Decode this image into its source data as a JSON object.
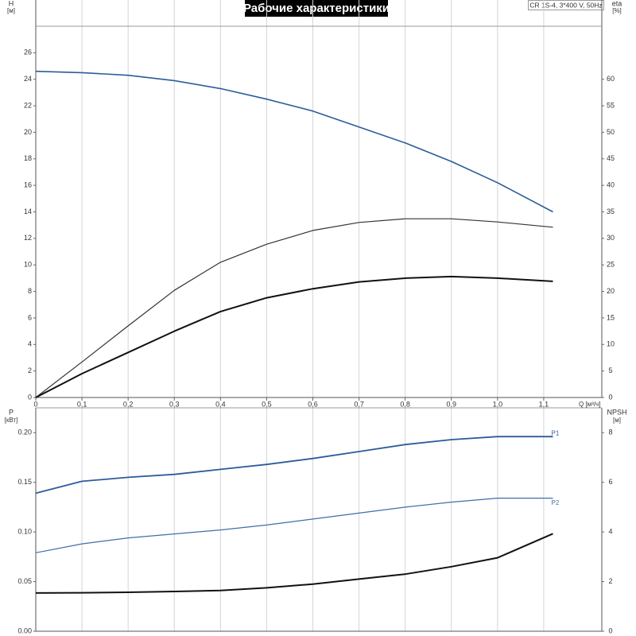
{
  "chart_data": [
    {
      "type": "line",
      "title": "Рабочие характеристики",
      "subtitle": "CR 1S-4, 3*400 V, 50Hz",
      "x_label": "Q [м³/ч]",
      "y_label": "H",
      "y_unit": "[м]",
      "y2_label": "eta",
      "y2_unit": "[%]",
      "x": [
        0,
        0.1,
        0.2,
        0.3,
        0.4,
        0.5,
        0.6,
        0.7,
        0.8,
        0.9,
        1.0,
        1.12
      ],
      "xlim": [
        0,
        1.2
      ],
      "xticks": [
        0,
        {
          "value": 0.1,
          "label": "0,1"
        },
        {
          "value": 0.2,
          "label": "0,2"
        },
        {
          "value": 0.3,
          "label": "0,3"
        },
        {
          "value": 0.4,
          "label": "0,4"
        },
        {
          "value": 0.5,
          "label": "0,5"
        },
        {
          "value": 0.6,
          "label": "0,6"
        },
        {
          "value": 0.7,
          "label": "0,7"
        },
        {
          "value": 0.8,
          "label": "0,8"
        },
        {
          "value": 0.9,
          "label": "0,9"
        },
        {
          "value": 1.0,
          "label": "1,0"
        },
        {
          "value": 1.1,
          "label": "1,1"
        }
      ],
      "ylim": [
        0,
        28
      ],
      "yticks": [
        0,
        2,
        4,
        6,
        8,
        10,
        12,
        14,
        16,
        18,
        20,
        22,
        24,
        26
      ],
      "y2lim": [
        0,
        70
      ],
      "y2ticks": [
        0,
        5,
        10,
        15,
        20,
        25,
        30,
        35,
        40,
        45,
        50,
        55,
        60
      ],
      "grid": true,
      "series": [
        {
          "color": "#2b5c9a",
          "values": [
            24.6,
            24.5,
            24.3,
            23.9,
            23.3,
            22.5,
            21.6,
            20.4,
            19.2,
            17.8,
            16.2,
            14.0
          ]
        },
        {
          "color": "#333333",
          "axis": "y2",
          "values": [
            0,
            6.7,
            13.5,
            20.2,
            25.5,
            28.9,
            31.5,
            33.0,
            33.7,
            33.7,
            33.1,
            32.1
          ]
        },
        {
          "color": "#111111",
          "axis": "y2",
          "values": [
            0,
            4.5,
            8.5,
            12.5,
            16.2,
            18.8,
            20.5,
            21.8,
            22.5,
            22.8,
            22.5,
            21.9
          ]
        }
      ]
    },
    {
      "type": "line",
      "y_label": "P",
      "y_unit": "[кВт]",
      "y2_label": "NPSH",
      "y2_unit": "[м]",
      "x": [
        0,
        0.1,
        0.2,
        0.3,
        0.4,
        0.5,
        0.6,
        0.7,
        0.8,
        0.9,
        1.0,
        1.12
      ],
      "xlim": [
        0,
        1.2
      ],
      "ylim": [
        0,
        0.225
      ],
      "yticks": [
        {
          "value": 0,
          "label": "0.00"
        },
        {
          "value": 0.05,
          "label": "0.05"
        },
        {
          "value": 0.1,
          "label": "0.10"
        },
        {
          "value": 0.15,
          "label": "0.15"
        },
        {
          "value": 0.2,
          "label": "0.20"
        }
      ],
      "y2lim": [
        0,
        9
      ],
      "y2ticks": [
        0,
        2,
        4,
        6,
        8
      ],
      "series": [
        {
          "name": "P1",
          "color": "#2b5c9a",
          "values": [
            0.139,
            0.151,
            0.155,
            0.158,
            0.163,
            0.168,
            0.174,
            0.181,
            0.188,
            0.193,
            0.196,
            0.196
          ]
        },
        {
          "name": "P2",
          "color": "#3f6ea8",
          "values": [
            0.079,
            0.088,
            0.094,
            0.098,
            0.102,
            0.107,
            0.113,
            0.119,
            0.125,
            0.13,
            0.134,
            0.134
          ]
        },
        {
          "color": "#111111",
          "axis": "y2",
          "values": [
            1.54,
            1.55,
            1.57,
            1.6,
            1.64,
            1.75,
            1.9,
            2.1,
            2.3,
            2.6,
            2.96,
            3.93
          ]
        }
      ]
    }
  ]
}
